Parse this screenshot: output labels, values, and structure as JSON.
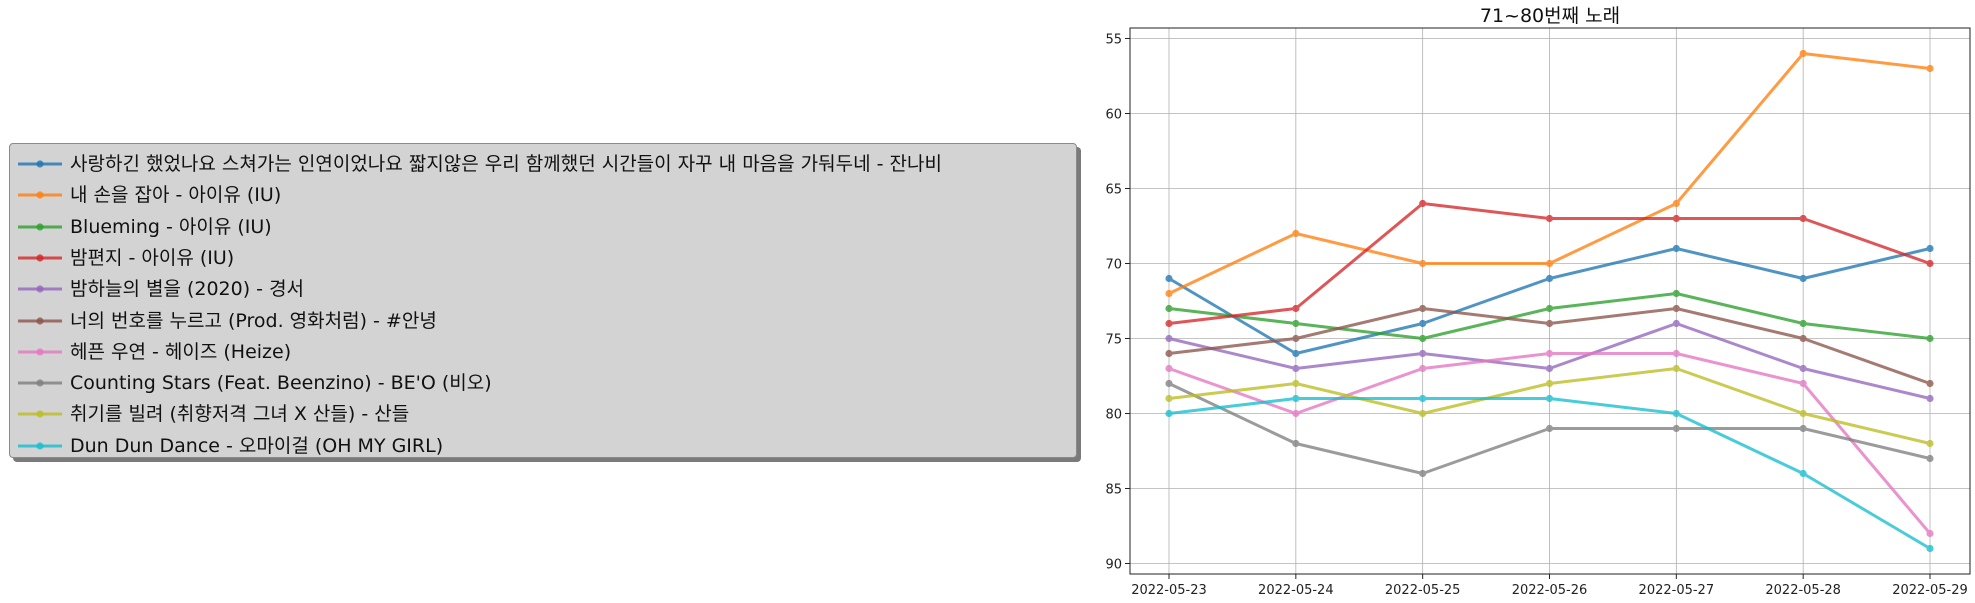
{
  "chart_data": {
    "type": "line",
    "title": "71~80번째 노래",
    "xlabel": "",
    "ylabel": "",
    "x": [
      "2022-05-23",
      "2022-05-24",
      "2022-05-25",
      "2022-05-26",
      "2022-05-27",
      "2022-05-28",
      "2022-05-29"
    ],
    "y_inverted": true,
    "ylim": [
      90.7,
      54.3
    ],
    "yticks": [
      55,
      60,
      65,
      70,
      75,
      80,
      85,
      90
    ],
    "grid": true,
    "legend_placement": "left, outside plot",
    "series": [
      {
        "name": "사랑하긴 했었나요 스쳐가는 인연이었나요 짧지않은 우리 함께했던 시간들이 자꾸 내 마음을 가둬두네 - 잔나비",
        "color": "#1f77b4",
        "values": [
          71,
          76,
          74,
          71,
          69,
          71,
          69
        ]
      },
      {
        "name": "내 손을 잡아 - 아이유 (IU)",
        "color": "#ff7f0e",
        "values": [
          72,
          68,
          70,
          70,
          66,
          56,
          57
        ]
      },
      {
        "name": "Blueming - 아이유 (IU)",
        "color": "#2ca02c",
        "values": [
          73,
          74,
          75,
          73,
          72,
          74,
          75
        ]
      },
      {
        "name": "밤편지 - 아이유 (IU)",
        "color": "#d62728",
        "values": [
          74,
          73,
          66,
          67,
          67,
          67,
          70
        ]
      },
      {
        "name": "밤하늘의 별을 (2020) - 경서",
        "color": "#9467bd",
        "values": [
          75,
          77,
          76,
          77,
          74,
          77,
          79
        ]
      },
      {
        "name": "너의 번호를 누르고 (Prod. 영화처럼) - #안녕",
        "color": "#8c564b",
        "values": [
          76,
          75,
          73,
          74,
          73,
          75,
          78
        ]
      },
      {
        "name": "헤픈 우연 - 헤이즈 (Heize)",
        "color": "#e377c2",
        "values": [
          77,
          80,
          77,
          76,
          76,
          78,
          88
        ]
      },
      {
        "name": "Counting Stars (Feat. Beenzino) - BE'O (비오)",
        "color": "#7f7f7f",
        "values": [
          78,
          82,
          84,
          81,
          81,
          81,
          83
        ]
      },
      {
        "name": "취기를 빌려 (취향저격 그녀 X 산들) - 산들",
        "color": "#bcbd22",
        "values": [
          79,
          78,
          80,
          78,
          77,
          80,
          82
        ]
      },
      {
        "name": "Dun Dun Dance - 오마이걸 (OH MY GIRL)",
        "color": "#17becf",
        "values": [
          80,
          79,
          79,
          79,
          80,
          84,
          89
        ]
      }
    ]
  }
}
